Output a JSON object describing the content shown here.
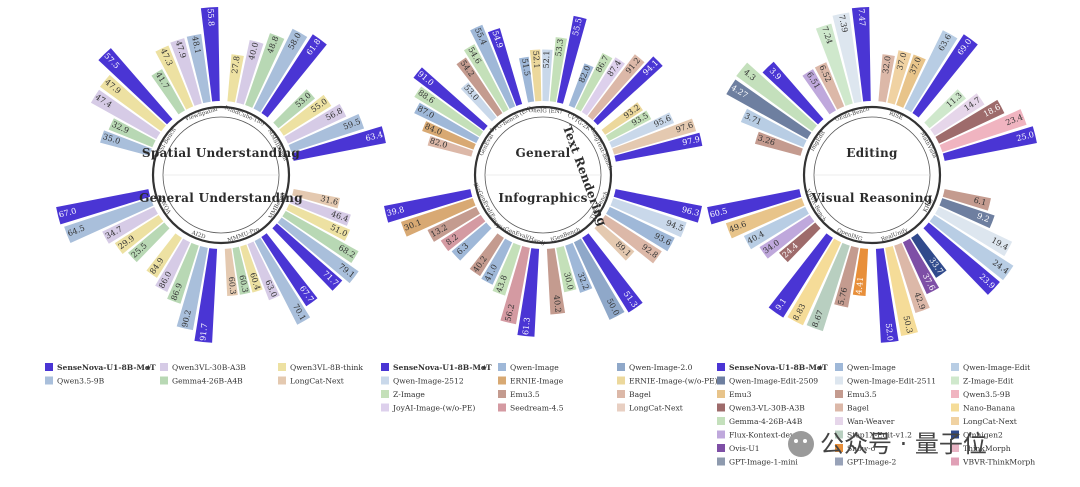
{
  "colors": {
    "SenseNova-U1-8B-MoT": "#4a35d4",
    "Qwen3.5-9B": "#a9bfdb",
    "Qwen3VL-30B-A3B": "#d6cbe6",
    "Gemma4-26B-A4B": "#b8d8b4",
    "Qwen3VL-8B-think": "#ede1a2",
    "LongCat-Next": "#e4c9b0",
    "Qwen-Image": "#9fb8d8",
    "Qwen-Image-2512": "#c9d8ea",
    "Z-Image": "#c4e0b9",
    "JoyAI-Image-(w/o-PE)": "#ddd0ec",
    "ERNIE-Image": "#d8a973",
    "Emu3.5": "#c49b8f",
    "Seedream-4.5": "#d49aa2",
    "Qwen-Image-2.0": "#8fa8c9",
    "ERNIE-Image-(w/o-PE)": "#ecd89c",
    "Bagel": "#dcb8a8",
    "LongCat-Next-2": "#e8cfc2",
    "Qwen-Image-Edit": "#b8cde4",
    "Qwen-Image-Edit-2509": "#6e7fa0",
    "Qwen-Image-Edit-2511": "#dde6ef",
    "Z-Image-Edit": "#cfe8cc",
    "Emu3": "#e8c48a",
    "Qwen3-VL-30B-A3B": "#9e6b6b",
    "Qwen3.5-9B-e": "#f0b4c0",
    "Gemma-4-26B-A4B": "#c4e0bc",
    "Nano-Banana": "#f5dc98",
    "Wan-Weaver": "#e6d6ea",
    "LongCat-Next-e": "#f0d2a2",
    "Flux-Kontext-dev": "#bfa8dc",
    "Step1X-Edit-v1.2": "#b8cfc0",
    "Omnigen2": "#304a8c",
    "Ovis-U1": "#7e4fa6",
    "Show-o": "#e88f3a",
    "ThinkMorph": "#e8b4c4",
    "GPT-Image-1-mini": "#8e9aae",
    "GPT-Image-2": "#98a2b8",
    "VBVR-ThinkMorph": "#e0a0b6"
  },
  "charts": [
    {
      "top_title": "Spatial Understanding",
      "bottom_title": "General Understanding",
      "groups": [
        {
          "label": "VSI-Bench",
          "side": "top",
          "series": [
            "Qwen3.5-9B",
            "Gemma4-26B-A4B",
            "Qwen3VL-30B-A3B",
            "Qwen3VL-8B-think",
            "SenseNova-U1-8B-MoT"
          ],
          "values": [
            35.0,
            32.9,
            47.4,
            47.9,
            57.5
          ]
        },
        {
          "label": "ViewSpatial",
          "side": "top",
          "series": [
            "Gemma4-26B-A4B",
            "Qwen3VL-8B-think",
            "Qwen3VL-30B-A3B",
            "Qwen3.5-9B",
            "SenseNova-U1-8B-MoT"
          ],
          "values": [
            41.7,
            47.3,
            47.9,
            48.1,
            55.8
          ]
        },
        {
          "label": "MindCube-Tiny",
          "side": "top",
          "series": [
            "Qwen3VL-8B-think",
            "Qwen3VL-30B-A3B",
            "Gemma4-26B-A4B",
            "Qwen3.5-9B",
            "SenseNova-U1-8B-MoT"
          ],
          "values": [
            27.8,
            40.0,
            48.8,
            58.0,
            61.8
          ]
        },
        {
          "label": "MMSIBench",
          "side": "top",
          "series": [
            "Gemma4-26B-A4B",
            "Qwen3VL-8B-think",
            "Qwen3VL-30B-A3B",
            "Qwen3.5-9B",
            "SenseNova-U1-8B-MoT"
          ],
          "values": [
            53.0,
            55.0,
            56.8,
            59.5,
            63.4
          ]
        },
        {
          "label": "MMBench",
          "side": "bottom",
          "series": [
            "LongCat-Next",
            "Qwen3VL-30B-A3B",
            "Qwen3VL-8B-think",
            "Gemma4-26B-A4B",
            "Qwen3.5-9B",
            "SenseNova-U1-8B-MoT"
          ],
          "values": [
            31.6,
            46.4,
            51.0,
            68.2,
            79.1,
            71.7
          ]
        },
        {
          "label": "MMMU-Pro",
          "side": "bottom",
          "series": [
            "SenseNova-U1-8B-MoT",
            "Qwen3.5-9B",
            "Qwen3VL-30B-A3B",
            "Qwen3VL-8B-think",
            "Gemma4-26B-A4B",
            "LongCat-Next"
          ],
          "values": [
            67.7,
            70.1,
            63.0,
            60.4,
            60.3,
            60.3
          ]
        },
        {
          "label": "AI2D",
          "side": "bottom",
          "series": [
            "SenseNova-U1-8B-MoT",
            "Qwen3.5-9B",
            "Gemma4-26B-A4B",
            "Qwen3VL-30B-A3B",
            "Qwen3VL-8B-think"
          ],
          "values": [
            91.7,
            90.2,
            86.9,
            86.0,
            84.9
          ]
        },
        {
          "label": "RWQA",
          "side": "bottom",
          "series": [
            "Gemma4-26B-A4B",
            "Qwen3VL-8B-think",
            "Qwen3VL-30B-A3B",
            "Qwen3.5-9B",
            "SenseNova-U1-8B-MoT"
          ],
          "values": [
            25.5,
            29.9,
            34.7,
            64.5,
            67.0
          ]
        }
      ],
      "legend": [
        [
          "SenseNova-U1-8B-MoT",
          "Qwen3VL-30B-A3B",
          "Qwen3VL-8B-think"
        ],
        [
          "Qwen3.5-9B",
          "Gemma4-26B-A4B",
          "LongCat-Next"
        ]
      ]
    },
    {
      "top_title": "General",
      "bottom_title": "Infographics",
      "side_title": "Text Rendering",
      "groups": [
        {
          "label": "GenEval",
          "side": "top",
          "series": [
            "Bagel",
            "ERNIE-Image",
            "Qwen-Image",
            "Z-Image",
            "SenseNova-U1-8B-MoT"
          ],
          "values": [
            82.0,
            84.0,
            87.0,
            88.6,
            91.0
          ]
        },
        {
          "label": "DPG-Bench (EN)",
          "side": "top",
          "series": [
            "Qwen-Image-2512",
            "Emu3.5",
            "Z-Image",
            "Qwen-Image",
            "SenseNova-U1-8B-MoT"
          ],
          "values": [
            53.0,
            54.2,
            54.6,
            55.4,
            54.9
          ]
        },
        {
          "label": "OneIG (EN)",
          "side": "top",
          "series": [
            "Qwen-Image",
            "ERNIE-Image-(w/o-PE)",
            "Qwen-Image-2512",
            "Z-Image",
            "SenseNova-U1-8B-MoT"
          ],
          "values": [
            51.5,
            52.1,
            52.1,
            53.3,
            55.5
          ]
        },
        {
          "label": "CVTG-2K",
          "side": "top",
          "series": [
            "Qwen-Image",
            "Z-Image",
            "JoyAI-Image-(w/o-PE)",
            "Bagel",
            "SenseNova-U1-8B-MoT"
          ],
          "values": [
            82.0,
            86.7,
            87.4,
            91.2,
            94.1
          ]
        },
        {
          "label": "LongText-Bench",
          "side": "top",
          "series": [
            "ERNIE-Image-(w/o-PE)",
            "Z-Image",
            "Qwen-Image-2512",
            "LongCat-Next",
            "SenseNova-U1-8B-MoT"
          ],
          "values": [
            93.2,
            93.5,
            95.6,
            97.6,
            97.9
          ]
        },
        {
          "label": "TIIF-Bench",
          "side": "bottom",
          "series": [
            "SenseNova-U1-8B-MoT",
            "Qwen-Image-2512",
            "Qwen-Image",
            "Bagel",
            "LongCat-Next"
          ],
          "values": [
            96.3,
            94.5,
            93.6,
            92.8,
            89.1
          ]
        },
        {
          "label": "IGenBench",
          "side": "bottom",
          "series": [
            "SenseNova-U1-8B-MoT",
            "Qwen-Image-2.0",
            "Qwen-Image",
            "Z-Image",
            "Emu3.5"
          ],
          "values": [
            51.3,
            50.0,
            32.2,
            30.0,
            40.2
          ]
        },
        {
          "label": "BizGenEval(Hard)",
          "side": "bottom",
          "series": [
            "SenseNova-U1-8B-MoT",
            "Seedream-4.5",
            "Z-Image",
            "Qwen-Image",
            "Emu3.5"
          ],
          "values": [
            61.3,
            56.2,
            43.8,
            41.0,
            40.2
          ]
        },
        {
          "label": "BizGenEval(Easy)",
          "side": "bottom",
          "series": [
            "Qwen-Image",
            "Seedream-4.5",
            "Emu3.5",
            "ERNIE-Image",
            "SenseNova-U1-8B-MoT"
          ],
          "values": [
            6.3,
            8.2,
            13.2,
            30.1,
            39.8
          ]
        }
      ],
      "legend": [
        [
          "SenseNova-U1-8B-MoT",
          "Qwen-Image",
          "Qwen-Image-2.0"
        ],
        [
          "Qwen-Image-2512",
          "ERNIE-Image",
          "ERNIE-Image-(w/o-PE)"
        ],
        [
          "Z-Image",
          "Emu3.5",
          "Bagel"
        ],
        [
          "JoyAI-Image-(w/o-PE)",
          "Seedream-4.5",
          "LongCat-Next"
        ]
      ]
    },
    {
      "top_title": "Editing",
      "bottom_title": "Visual Reasoning",
      "groups": [
        {
          "label": "ImgEdit",
          "side": "top",
          "series": [
            "Emu3.5",
            "Qwen-Image-Edit",
            "Qwen-Image-Edit-2509",
            "Gemma-4-26B-A4B",
            "SenseNova-U1-8B-MoT"
          ],
          "values": [
            3.26,
            3.71,
            4.27,
            4.3,
            3.9
          ]
        },
        {
          "label": "GEdit-Bench",
          "side": "top",
          "series": [
            "Flux-Kontext-dev",
            "Bagel",
            "Z-Image-Edit",
            "Qwen-Image-Edit-2511",
            "SenseNova-U1-8B-MoT"
          ],
          "values": [
            6.51,
            6.52,
            7.24,
            7.39,
            7.47
          ]
        },
        {
          "label": "RISE",
          "side": "top",
          "series": [
            "Bagel",
            "LongCat-Next-e",
            "Emu3",
            "Qwen-Image-Edit",
            "SenseNova-U1-8B-MoT"
          ],
          "values": [
            32.0,
            37.0,
            37.0,
            63.6,
            69.0
          ]
        },
        {
          "label": "KRIS",
          "side": "bottom",
          "series": [
            "Emu3.5",
            "Qwen-Image-Edit-2509",
            "Qwen-Image-Edit-2511",
            "Qwen-Image-Edit",
            "SenseNova-U1-8B-MoT"
          ],
          "values": [
            6.1,
            9.2,
            19.4,
            24.4,
            23.9
          ]
        },
        {
          "label": "RealUnify",
          "side": "bottom",
          "series": [
            "Omnigen2",
            "Ovis-U1",
            "Bagel",
            "Nano-Banana",
            "SenseNova-U1-8B-MoT"
          ],
          "values": [
            33.7,
            37.6,
            42.9,
            50.3,
            52.0
          ]
        },
        {
          "label": "OpenING",
          "side": "bottom",
          "series": [
            "Show-o",
            "Emu3.5",
            "Step1X-Edit-v1.2",
            "Nano-Banana",
            "SenseNova-U1-8B-MoT"
          ],
          "values": [
            4.41,
            5.76,
            8.67,
            8.83,
            9.1
          ]
        },
        {
          "label": "VBVR-Bench",
          "side": "bottom",
          "series": [
            "Qwen3-VL-30B-A3B",
            "Flux-Kontext-dev",
            "Qwen-Image-Edit",
            "Emu3",
            "SenseNova-U1-8B-MoT"
          ],
          "values": [
            24.4,
            34.0,
            40.4,
            49.6,
            60.5
          ]
        },
        {
          "label": "MathVista",
          "side": "top",
          "series": [
            "Z-Image-Edit",
            "Wan-Weaver",
            "Qwen3-VL-30B-A3B",
            "Qwen3.5-9B-e",
            "SenseNova-U1-8B-MoT"
          ],
          "values": [
            11.3,
            14.7,
            18.6,
            23.4,
            25.0
          ]
        }
      ],
      "legend": [
        [
          "SenseNova-U1-8B-MoT",
          "Qwen-Image",
          "Qwen-Image-Edit"
        ],
        [
          "Qwen-Image-Edit-2509",
          "Qwen-Image-Edit-2511",
          "Z-Image-Edit"
        ],
        [
          "Emu3",
          "Emu3.5",
          "Qwen3.5-9B"
        ],
        [
          "Qwen3-VL-30B-A3B",
          "Bagel",
          "Nano-Banana"
        ],
        [
          "Gemma-4-26B-A4B",
          "Wan-Weaver",
          "LongCat-Next"
        ],
        [
          "Flux-Kontext-dev",
          "Step1X-Edit-v1.2",
          "Omnigen2"
        ],
        [
          "Ovis-U1",
          "Show-o",
          "ThinkMorph"
        ],
        [
          "GPT-Image-1-mini",
          "GPT-Image-2",
          "VBVR-ThinkMorph"
        ]
      ]
    }
  ],
  "legend_star": "★",
  "watermark": "公众号 · 量子位",
  "chart_data": [
    {
      "type": "bar",
      "title": "Spatial Understanding / General Understanding",
      "categories": [
        "VSI-Bench",
        "ViewSpatial",
        "MindCube-Tiny",
        "MMSIBench",
        "MMBench",
        "MMMU-Pro",
        "AI2D",
        "RWQA"
      ],
      "series": [
        {
          "name": "SenseNova-U1-8B-MoT",
          "values": [
            57.5,
            55.8,
            61.8,
            63.4,
            71.7,
            67.7,
            91.7,
            67.0
          ]
        }
      ]
    },
    {
      "type": "bar",
      "title": "General / Text Rendering / Infographics",
      "categories": [
        "GenEval",
        "DPG-Bench (EN)",
        "OneIG (EN)",
        "CVTG-2K",
        "LongText-Bench",
        "TIIF-Bench",
        "IGenBench",
        "BizGenEval(Hard)",
        "BizGenEval(Easy)"
      ],
      "series": [
        {
          "name": "SenseNova-U1-8B-MoT",
          "values": [
            91.0,
            54.9,
            55.5,
            94.1,
            97.9,
            96.3,
            51.3,
            61.3,
            39.8
          ]
        }
      ]
    },
    {
      "type": "bar",
      "title": "Editing / Visual Reasoning",
      "categories": [
        "ImgEdit",
        "GEdit-Bench",
        "RISE",
        "KRIS",
        "RealUnify",
        "OpenING",
        "VBVR-Bench",
        "MathVista"
      ],
      "series": [
        {
          "name": "SenseNova-U1-8B-MoT",
          "values": [
            3.9,
            7.47,
            69.0,
            23.9,
            52.0,
            9.1,
            60.5,
            25.0
          ]
        }
      ]
    }
  ]
}
